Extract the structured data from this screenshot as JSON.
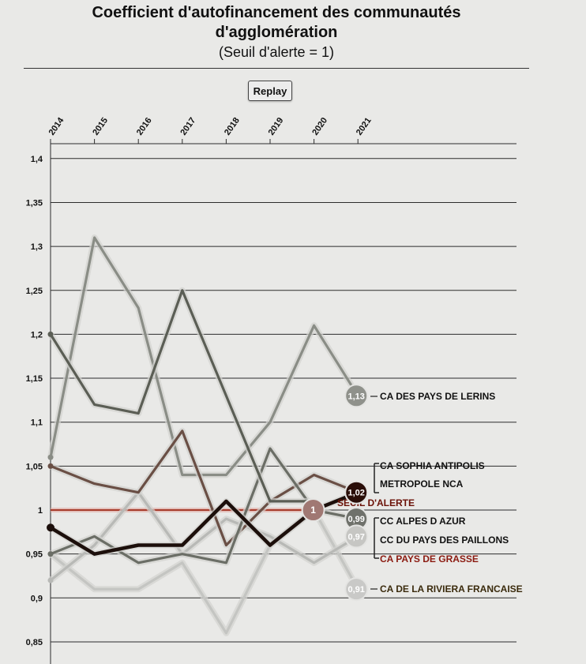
{
  "header": {
    "title_line1": "Coefficient d'autofinancement des communautés",
    "title_line2": "d'agglomération",
    "subtitle": "(Seuil d'alerte = 1)"
  },
  "controls": {
    "replay_label": "Replay"
  },
  "chart_data": {
    "type": "line",
    "title": "Coefficient d'autofinancement des communautés d'agglomération",
    "subtitle": "(Seuil d'alerte = 1)",
    "xlabel": "",
    "ylabel": "",
    "x": [
      "2014",
      "2015",
      "2016",
      "2017",
      "2018",
      "2019",
      "2020",
      "2021"
    ],
    "ylim": [
      0.85,
      1.4
    ],
    "yticks": [
      1.4,
      1.35,
      1.3,
      1.25,
      1.2,
      1.15,
      1.1,
      1.05,
      1,
      0.95,
      0.9,
      0.85
    ],
    "ytick_labels": [
      "1,4",
      "1,35",
      "1,3",
      "1,25",
      "1,2",
      "1,15",
      "1,1",
      "1,05",
      "1",
      "0,95",
      "0,9",
      "0,85"
    ],
    "grid": true,
    "threshold": {
      "value": 1,
      "label": "SEUIL D'ALERTE",
      "badge": "1",
      "color": "#a63a2a"
    },
    "series": [
      {
        "name": "CA DES PAYS DE LERINS",
        "values": [
          1.06,
          1.31,
          1.23,
          1.04,
          1.04,
          1.1,
          1.21,
          1.13
        ],
        "color": "#8a8d86",
        "badge": "1,13",
        "label_color": "#111111"
      },
      {
        "name": "CA SOPHIA ANTIPOLIS",
        "values": [
          1.2,
          1.12,
          1.11,
          1.25,
          1.13,
          1.01,
          1.01,
          null
        ],
        "color": "#5b5e55",
        "badge": "",
        "label_color": "#111111"
      },
      {
        "name": "METROPOLE NCA",
        "values": [
          0.98,
          0.95,
          0.96,
          0.96,
          1.01,
          0.96,
          1.0,
          1.02
        ],
        "color": "#1c0f0b",
        "badge": "1,02",
        "label_color": "#111111"
      },
      {
        "name": "CC ALPES D AZUR",
        "values": [
          0.95,
          0.97,
          0.94,
          0.95,
          0.94,
          1.07,
          1.0,
          0.99
        ],
        "color": "#6b6e66",
        "badge": "0,99",
        "label_color": "#111111"
      },
      {
        "name": "CC DU PAYS DES PAILLONS",
        "values": [
          0.92,
          0.96,
          1.02,
          0.95,
          0.99,
          0.97,
          0.94,
          0.97
        ],
        "color": "#b8b9b6",
        "badge": "0,97",
        "label_color": "#111111"
      },
      {
        "name": "CA PAYS DE GRASSE",
        "values": [
          1.05,
          1.03,
          1.02,
          1.09,
          0.96,
          1.01,
          1.04,
          1.02
        ],
        "color": "#6a4f45",
        "badge": "",
        "label_color": "#8b1a10"
      },
      {
        "name": "CA DE LA RIVIERA FRANCAISE",
        "values": [
          0.95,
          0.91,
          0.91,
          0.94,
          0.86,
          0.96,
          1.0,
          0.91
        ],
        "color": "#c4c5c2",
        "badge": "0,91",
        "label_color": "#3a2a0c"
      }
    ]
  }
}
